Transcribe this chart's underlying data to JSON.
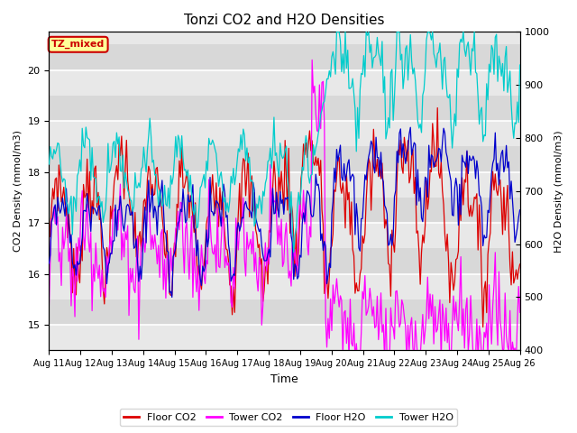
{
  "title": "Tonzi CO2 and H2O Densities",
  "xlabel": "Time",
  "ylabel_left": "CO2 Density (mmol/m3)",
  "ylabel_right": "H2O Density (mmol/m3)",
  "ylim_left": [
    14.5,
    20.75
  ],
  "ylim_right": [
    400,
    1000
  ],
  "annotation_text": "TZ_mixed",
  "annotation_color": "#cc0000",
  "annotation_bg": "#ffff99",
  "annotation_border": "#cc0000",
  "colors": {
    "floor_co2": "#dd0000",
    "tower_co2": "#ff00ff",
    "floor_h2o": "#0000cc",
    "tower_h2o": "#00cccc"
  },
  "legend_labels": [
    "Floor CO2",
    "Tower CO2",
    "Floor H2O",
    "Tower H2O"
  ],
  "ax_bg": "#e8e8e8",
  "band_color": "#d0d0d0",
  "n_pts": 384
}
